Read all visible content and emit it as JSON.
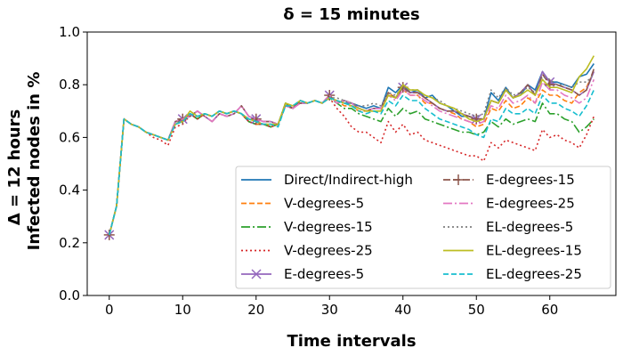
{
  "chart_data": {
    "type": "line",
    "title": "δ = 15 minutes",
    "xlabel": "Time intervals",
    "ylabel_lines": [
      "Δ = 12 hours",
      "Infected nodes in %"
    ],
    "xlim": [
      -3,
      69
    ],
    "ylim": [
      0.0,
      1.0
    ],
    "xticks": [
      0,
      10,
      20,
      30,
      40,
      50,
      60
    ],
    "yticks": [
      0.0,
      0.2,
      0.4,
      0.6,
      0.8,
      1.0
    ],
    "xtick_labels": [
      "0",
      "10",
      "20",
      "30",
      "40",
      "50",
      "60"
    ],
    "ytick_labels": [
      "0.0",
      "0.2",
      "0.4",
      "0.6",
      "0.8",
      "1.0"
    ],
    "grid": false,
    "legend": {
      "placement": "lower-right",
      "columns": 2
    },
    "x": [
      0,
      1,
      2,
      3,
      4,
      5,
      6,
      7,
      8,
      9,
      10,
      11,
      12,
      13,
      14,
      15,
      16,
      17,
      18,
      19,
      20,
      21,
      22,
      23,
      24,
      25,
      26,
      27,
      28,
      29,
      30,
      31,
      32,
      33,
      34,
      35,
      36,
      37,
      38,
      39,
      40,
      41,
      42,
      43,
      44,
      45,
      46,
      47,
      48,
      49,
      50,
      51,
      52,
      53,
      54,
      55,
      56,
      57,
      58,
      59,
      60,
      61,
      62,
      63,
      64,
      65,
      66
    ],
    "series": [
      {
        "name": "Direct/Indirect-high",
        "color": "#1f77b4",
        "dash": "none",
        "marker": "none",
        "values": [
          0.23,
          0.34,
          0.67,
          0.65,
          0.64,
          0.62,
          0.61,
          0.6,
          0.59,
          0.66,
          0.66,
          0.69,
          0.67,
          0.69,
          0.68,
          0.7,
          0.69,
          0.7,
          0.69,
          0.66,
          0.65,
          0.65,
          0.64,
          0.65,
          0.73,
          0.71,
          0.74,
          0.73,
          0.74,
          0.73,
          0.75,
          0.74,
          0.73,
          0.73,
          0.72,
          0.71,
          0.72,
          0.71,
          0.79,
          0.77,
          0.8,
          0.77,
          0.78,
          0.75,
          0.76,
          0.73,
          0.72,
          0.7,
          0.68,
          0.68,
          0.67,
          0.67,
          0.77,
          0.74,
          0.79,
          0.75,
          0.76,
          0.8,
          0.78,
          0.85,
          0.81,
          0.81,
          0.8,
          0.79,
          0.83,
          0.84,
          0.88
        ]
      },
      {
        "name": "V-degrees-5",
        "color": "#ff7f0e",
        "dash": "6,3",
        "marker": "none",
        "values": [
          0.23,
          0.34,
          0.67,
          0.65,
          0.64,
          0.62,
          0.61,
          0.6,
          0.59,
          0.66,
          0.66,
          0.69,
          0.67,
          0.69,
          0.68,
          0.7,
          0.69,
          0.7,
          0.69,
          0.66,
          0.65,
          0.65,
          0.64,
          0.65,
          0.73,
          0.71,
          0.74,
          0.73,
          0.74,
          0.73,
          0.75,
          0.74,
          0.72,
          0.72,
          0.7,
          0.7,
          0.7,
          0.7,
          0.77,
          0.75,
          0.78,
          0.76,
          0.76,
          0.73,
          0.73,
          0.71,
          0.7,
          0.69,
          0.67,
          0.66,
          0.64,
          0.65,
          0.71,
          0.7,
          0.74,
          0.71,
          0.72,
          0.75,
          0.73,
          0.78,
          0.76,
          0.76,
          0.74,
          0.73,
          0.77,
          0.79,
          0.85
        ]
      },
      {
        "name": "V-degrees-15",
        "color": "#2ca02c",
        "dash": "10,3,2,3",
        "marker": "none",
        "values": [
          0.23,
          0.34,
          0.67,
          0.65,
          0.64,
          0.62,
          0.61,
          0.6,
          0.59,
          0.66,
          0.66,
          0.69,
          0.67,
          0.69,
          0.68,
          0.7,
          0.69,
          0.7,
          0.69,
          0.66,
          0.65,
          0.65,
          0.64,
          0.65,
          0.73,
          0.71,
          0.74,
          0.73,
          0.74,
          0.73,
          0.75,
          0.73,
          0.71,
          0.71,
          0.69,
          0.68,
          0.67,
          0.66,
          0.71,
          0.68,
          0.71,
          0.69,
          0.7,
          0.67,
          0.66,
          0.65,
          0.64,
          0.63,
          0.62,
          0.62,
          0.61,
          0.62,
          0.66,
          0.64,
          0.67,
          0.65,
          0.66,
          0.67,
          0.66,
          0.73,
          0.69,
          0.69,
          0.67,
          0.66,
          0.62,
          0.64,
          0.67
        ]
      },
      {
        "name": "V-degrees-25",
        "color": "#d62728",
        "dash": "2,3",
        "marker": "none",
        "values": [
          0.23,
          0.34,
          0.67,
          0.65,
          0.64,
          0.62,
          0.6,
          0.59,
          0.57,
          0.64,
          0.65,
          0.69,
          0.67,
          0.69,
          0.68,
          0.7,
          0.69,
          0.7,
          0.69,
          0.66,
          0.65,
          0.65,
          0.64,
          0.65,
          0.73,
          0.71,
          0.74,
          0.73,
          0.74,
          0.73,
          0.75,
          0.71,
          0.68,
          0.64,
          0.62,
          0.62,
          0.6,
          0.58,
          0.66,
          0.62,
          0.65,
          0.61,
          0.62,
          0.59,
          0.58,
          0.57,
          0.56,
          0.55,
          0.54,
          0.53,
          0.53,
          0.51,
          0.58,
          0.56,
          0.59,
          0.58,
          0.57,
          0.56,
          0.55,
          0.63,
          0.6,
          0.61,
          0.59,
          0.58,
          0.56,
          0.61,
          0.68
        ]
      },
      {
        "name": "E-degrees-5",
        "color": "#9467bd",
        "dash": "none",
        "marker": "x",
        "marker_x": [
          0,
          10,
          20,
          30,
          40,
          50,
          60
        ],
        "values": [
          0.23,
          0.34,
          0.67,
          0.65,
          0.64,
          0.62,
          0.61,
          0.6,
          0.59,
          0.66,
          0.67,
          0.68,
          0.7,
          0.68,
          0.66,
          0.69,
          0.68,
          0.69,
          0.72,
          0.68,
          0.67,
          0.66,
          0.66,
          0.65,
          0.72,
          0.71,
          0.73,
          0.73,
          0.74,
          0.73,
          0.76,
          0.73,
          0.74,
          0.73,
          0.71,
          0.7,
          0.71,
          0.71,
          0.76,
          0.75,
          0.79,
          0.77,
          0.77,
          0.75,
          0.73,
          0.71,
          0.7,
          0.7,
          0.69,
          0.68,
          0.67,
          0.67,
          0.74,
          0.73,
          0.78,
          0.75,
          0.77,
          0.8,
          0.76,
          0.85,
          0.81,
          0.8,
          0.79,
          0.78,
          0.76,
          0.78,
          0.85
        ]
      },
      {
        "name": "E-degrees-15",
        "color": "#8c564b",
        "dash": "8,3",
        "marker": "plus",
        "marker_x": [
          0,
          10,
          20,
          30,
          40,
          50,
          60
        ],
        "values": [
          0.23,
          0.34,
          0.67,
          0.65,
          0.64,
          0.62,
          0.61,
          0.6,
          0.59,
          0.66,
          0.67,
          0.68,
          0.7,
          0.68,
          0.66,
          0.69,
          0.68,
          0.69,
          0.72,
          0.68,
          0.67,
          0.66,
          0.66,
          0.65,
          0.72,
          0.71,
          0.73,
          0.73,
          0.74,
          0.73,
          0.76,
          0.73,
          0.74,
          0.73,
          0.71,
          0.7,
          0.71,
          0.71,
          0.77,
          0.75,
          0.79,
          0.77,
          0.77,
          0.75,
          0.73,
          0.71,
          0.7,
          0.7,
          0.69,
          0.68,
          0.67,
          0.67,
          0.74,
          0.73,
          0.78,
          0.75,
          0.77,
          0.8,
          0.76,
          0.84,
          0.8,
          0.8,
          0.79,
          0.78,
          0.76,
          0.78,
          0.86
        ]
      },
      {
        "name": "E-degrees-25",
        "color": "#e377c2",
        "dash": "10,3,2,3",
        "marker": "none",
        "values": [
          0.23,
          0.34,
          0.67,
          0.65,
          0.64,
          0.62,
          0.61,
          0.6,
          0.59,
          0.66,
          0.67,
          0.68,
          0.7,
          0.68,
          0.66,
          0.69,
          0.68,
          0.69,
          0.72,
          0.68,
          0.67,
          0.66,
          0.66,
          0.65,
          0.72,
          0.71,
          0.73,
          0.73,
          0.74,
          0.73,
          0.76,
          0.73,
          0.74,
          0.73,
          0.71,
          0.7,
          0.71,
          0.71,
          0.76,
          0.74,
          0.78,
          0.76,
          0.76,
          0.74,
          0.72,
          0.7,
          0.69,
          0.68,
          0.67,
          0.66,
          0.65,
          0.66,
          0.72,
          0.71,
          0.76,
          0.73,
          0.74,
          0.76,
          0.73,
          0.81,
          0.78,
          0.78,
          0.76,
          0.75,
          0.73,
          0.75,
          0.82
        ]
      },
      {
        "name": "EL-degrees-5",
        "color": "#7f7f7f",
        "dash": "2,3",
        "marker": "none",
        "values": [
          0.23,
          0.34,
          0.67,
          0.65,
          0.64,
          0.62,
          0.61,
          0.6,
          0.59,
          0.65,
          0.66,
          0.69,
          0.68,
          0.69,
          0.68,
          0.7,
          0.69,
          0.7,
          0.69,
          0.67,
          0.66,
          0.65,
          0.65,
          0.65,
          0.72,
          0.72,
          0.74,
          0.73,
          0.74,
          0.73,
          0.75,
          0.75,
          0.74,
          0.73,
          0.72,
          0.72,
          0.73,
          0.72,
          0.77,
          0.76,
          0.79,
          0.78,
          0.78,
          0.76,
          0.75,
          0.74,
          0.72,
          0.71,
          0.7,
          0.69,
          0.68,
          0.69,
          0.78,
          0.75,
          0.79,
          0.76,
          0.77,
          0.79,
          0.77,
          0.83,
          0.82,
          0.8,
          0.8,
          0.79,
          0.81,
          0.81,
          0.84
        ]
      },
      {
        "name": "EL-degrees-15",
        "color": "#bcbd22",
        "dash": "none",
        "marker": "none",
        "values": [
          0.23,
          0.34,
          0.67,
          0.65,
          0.64,
          0.62,
          0.61,
          0.6,
          0.59,
          0.65,
          0.66,
          0.7,
          0.68,
          0.69,
          0.68,
          0.7,
          0.69,
          0.7,
          0.69,
          0.67,
          0.66,
          0.65,
          0.65,
          0.65,
          0.73,
          0.72,
          0.74,
          0.73,
          0.74,
          0.73,
          0.75,
          0.74,
          0.73,
          0.72,
          0.71,
          0.7,
          0.7,
          0.7,
          0.76,
          0.75,
          0.8,
          0.78,
          0.78,
          0.76,
          0.75,
          0.73,
          0.72,
          0.71,
          0.69,
          0.67,
          0.66,
          0.67,
          0.74,
          0.73,
          0.78,
          0.75,
          0.76,
          0.78,
          0.76,
          0.82,
          0.79,
          0.79,
          0.78,
          0.77,
          0.83,
          0.86,
          0.91
        ]
      },
      {
        "name": "EL-degrees-25",
        "color": "#17becf",
        "dash": "6,3",
        "marker": "none",
        "values": [
          0.23,
          0.34,
          0.67,
          0.65,
          0.64,
          0.62,
          0.61,
          0.6,
          0.59,
          0.65,
          0.66,
          0.69,
          0.68,
          0.69,
          0.68,
          0.7,
          0.69,
          0.7,
          0.69,
          0.67,
          0.66,
          0.65,
          0.65,
          0.64,
          0.72,
          0.72,
          0.74,
          0.73,
          0.74,
          0.73,
          0.75,
          0.74,
          0.73,
          0.72,
          0.7,
          0.69,
          0.7,
          0.69,
          0.74,
          0.72,
          0.76,
          0.74,
          0.74,
          0.71,
          0.69,
          0.67,
          0.66,
          0.65,
          0.64,
          0.63,
          0.61,
          0.6,
          0.67,
          0.66,
          0.71,
          0.69,
          0.69,
          0.71,
          0.69,
          0.76,
          0.73,
          0.73,
          0.71,
          0.7,
          0.68,
          0.72,
          0.78
        ]
      }
    ]
  }
}
